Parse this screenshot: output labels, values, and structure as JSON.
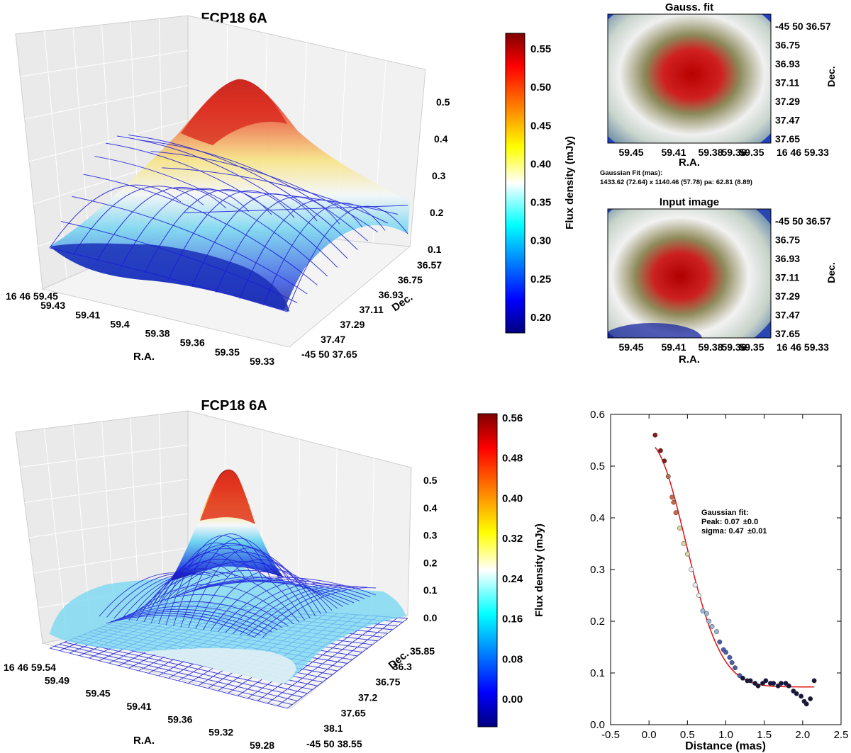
{
  "chart_data": [
    {
      "type": "surface3d",
      "title": "FCP18 6A",
      "xlabel": "R.A.",
      "ylabel": "Dec.",
      "x_ticks": [
        "16 46 59.45",
        "59.43",
        "59.41",
        "59.4",
        "59.38",
        "59.36",
        "59.35",
        "59.33"
      ],
      "y_ticks": [
        "36.57",
        "36.75",
        "36.93",
        "37.11",
        "37.29",
        "37.47",
        "-45 50 37.65"
      ],
      "z_ticks": [
        "0.1",
        "0.2",
        "0.3",
        "0.4",
        "0.5"
      ],
      "z_range": [
        0.1,
        0.57
      ],
      "colorbar": {
        "label": "Flux density (mJy)",
        "ticks": [
          "0.55",
          "0.50",
          "0.45",
          "0.40",
          "0.35",
          "0.30",
          "0.25",
          "0.20"
        ],
        "range": [
          0.18,
          0.57
        ]
      }
    },
    {
      "type": "heatmap",
      "title": "Gauss. fit",
      "xlabel": "R.A.",
      "ylabel": "Dec.",
      "x_ticks": [
        "59.45",
        "59.41",
        "59.38",
        "59.36",
        "59.35",
        "16 46 59.33"
      ],
      "y_ticks": [
        "-45 50 36.57",
        "36.75",
        "36.93",
        "37.11",
        "37.29",
        "37.47",
        "37.65"
      ],
      "annotation_title": "Gaussian Fit (mas):",
      "annotation": "1433.62 (72.64) x 1140.46 (57.78) pa: 62.81 (8.89)"
    },
    {
      "type": "heatmap",
      "title": "Input image",
      "xlabel": "R.A.",
      "ylabel": "Dec.",
      "x_ticks": [
        "59.45",
        "59.41",
        "59.38",
        "59.36",
        "59.35",
        "16 46 59.33"
      ],
      "y_ticks": [
        "-45 50 36.57",
        "36.75",
        "36.93",
        "37.11",
        "37.29",
        "37.47",
        "37.65"
      ]
    },
    {
      "type": "surface3d",
      "title": "FCP18 6A",
      "xlabel": "R.A.",
      "ylabel": "Dec.",
      "x_ticks": [
        "16 46 59.54",
        "59.49",
        "59.45",
        "59.41",
        "59.36",
        "59.32",
        "59.28"
      ],
      "y_ticks": [
        "35.85",
        "36.3",
        "36.75",
        "37.2",
        "37.65",
        "38.1",
        "-45 50 38.55"
      ],
      "z_ticks": [
        "0.0",
        "0.1",
        "0.2",
        "0.3",
        "0.4",
        "0.5"
      ],
      "z_range": [
        0.0,
        0.56
      ],
      "colorbar": {
        "label": "Flux density (mJy)",
        "ticks": [
          "0.56",
          "0.48",
          "0.40",
          "0.32",
          "0.24",
          "0.16",
          "0.08",
          "0.00"
        ],
        "range": [
          -0.04,
          0.56
        ]
      }
    },
    {
      "type": "scatter",
      "xlabel": "Distance (mas)",
      "ylabel": "",
      "xlim": [
        -0.5,
        2.5
      ],
      "ylim": [
        0.0,
        0.6
      ],
      "x_ticks": [
        "-0.5",
        "0.0",
        "0.5",
        "1.0",
        "1.5",
        "2.0",
        "2.5"
      ],
      "y_ticks": [
        "0.0",
        "0.1",
        "0.2",
        "0.3",
        "0.4",
        "0.5",
        "0.6"
      ],
      "x": [
        0.08,
        0.15,
        0.2,
        0.25,
        0.3,
        0.32,
        0.35,
        0.4,
        0.45,
        0.5,
        0.55,
        0.6,
        0.65,
        0.7,
        0.75,
        0.78,
        0.82,
        0.88,
        0.92,
        0.97,
        1.0,
        1.05,
        1.08,
        1.12,
        1.18,
        1.22,
        1.28,
        1.32,
        1.38,
        1.42,
        1.48,
        1.52,
        1.58,
        1.62,
        1.68,
        1.72,
        1.78,
        1.82,
        1.88,
        1.92,
        1.98,
        2.02,
        2.05,
        2.1,
        2.15
      ],
      "y": [
        0.56,
        0.53,
        0.51,
        0.48,
        0.44,
        0.43,
        0.41,
        0.38,
        0.35,
        0.33,
        0.3,
        0.27,
        0.25,
        0.22,
        0.215,
        0.2,
        0.19,
        0.18,
        0.16,
        0.145,
        0.14,
        0.13,
        0.12,
        0.11,
        0.095,
        0.09,
        0.085,
        0.085,
        0.08,
        0.075,
        0.08,
        0.085,
        0.08,
        0.08,
        0.075,
        0.08,
        0.08,
        0.075,
        0.065,
        0.06,
        0.055,
        0.045,
        0.04,
        0.05,
        0.085
      ],
      "fit": {
        "type": "gaussian",
        "peak_label": "Peak: 0.07",
        "peak_err": "±0.0",
        "sigma_label": "sigma: 0.47",
        "sigma_err": "±0.01",
        "title": "Gaussian fit:",
        "amplitude": 0.47,
        "sigma": 0.47,
        "center": 0.0,
        "offset": 0.073,
        "x_range": [
          0.08,
          2.15
        ]
      }
    }
  ]
}
